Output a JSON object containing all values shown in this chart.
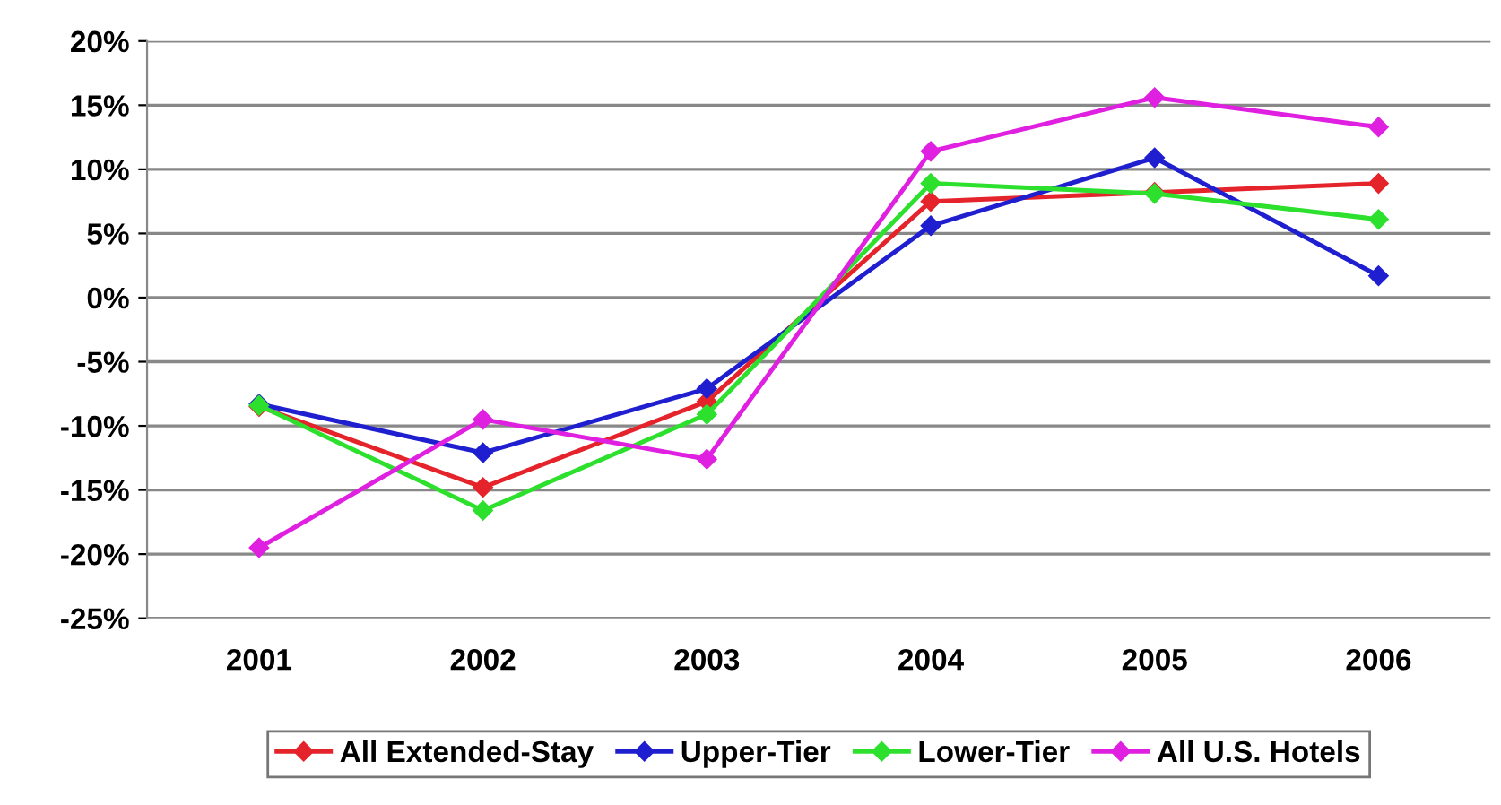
{
  "chart_data": {
    "type": "line",
    "categories": [
      "2001",
      "2002",
      "2003",
      "2004",
      "2005",
      "2006"
    ],
    "series": [
      {
        "name": "All Extended-Stay",
        "color": "#e4232b",
        "values": [
          -8.5,
          -14.8,
          -8.1,
          7.5,
          8.2,
          8.9
        ]
      },
      {
        "name": "Upper-Tier",
        "color": "#1f1fd0",
        "values": [
          -8.3,
          -12.1,
          -7.1,
          5.6,
          10.9,
          1.7
        ]
      },
      {
        "name": "Lower-Tier",
        "color": "#2ee02e",
        "values": [
          -8.4,
          -16.6,
          -9.1,
          8.9,
          8.1,
          6.1
        ]
      },
      {
        "name": "All U.S. Hotels",
        "color": "#e020e0",
        "values": [
          -19.5,
          -9.5,
          -12.6,
          11.4,
          15.6,
          13.3
        ]
      }
    ],
    "ylim": [
      -25,
      20
    ],
    "yticks": [
      {
        "value": -25,
        "label": "-25%"
      },
      {
        "value": -20,
        "label": "-20%"
      },
      {
        "value": -15,
        "label": "-15%"
      },
      {
        "value": -10,
        "label": "-10%"
      },
      {
        "value": -5,
        "label": "-5%"
      },
      {
        "value": 0,
        "label": "0%"
      },
      {
        "value": 5,
        "label": "5%"
      },
      {
        "value": 10,
        "label": "10%"
      },
      {
        "value": 15,
        "label": "15%"
      },
      {
        "value": 20,
        "label": "20%"
      }
    ],
    "grid": "y",
    "legend": "bottom",
    "marker": "diamond",
    "line_style": "solid"
  }
}
